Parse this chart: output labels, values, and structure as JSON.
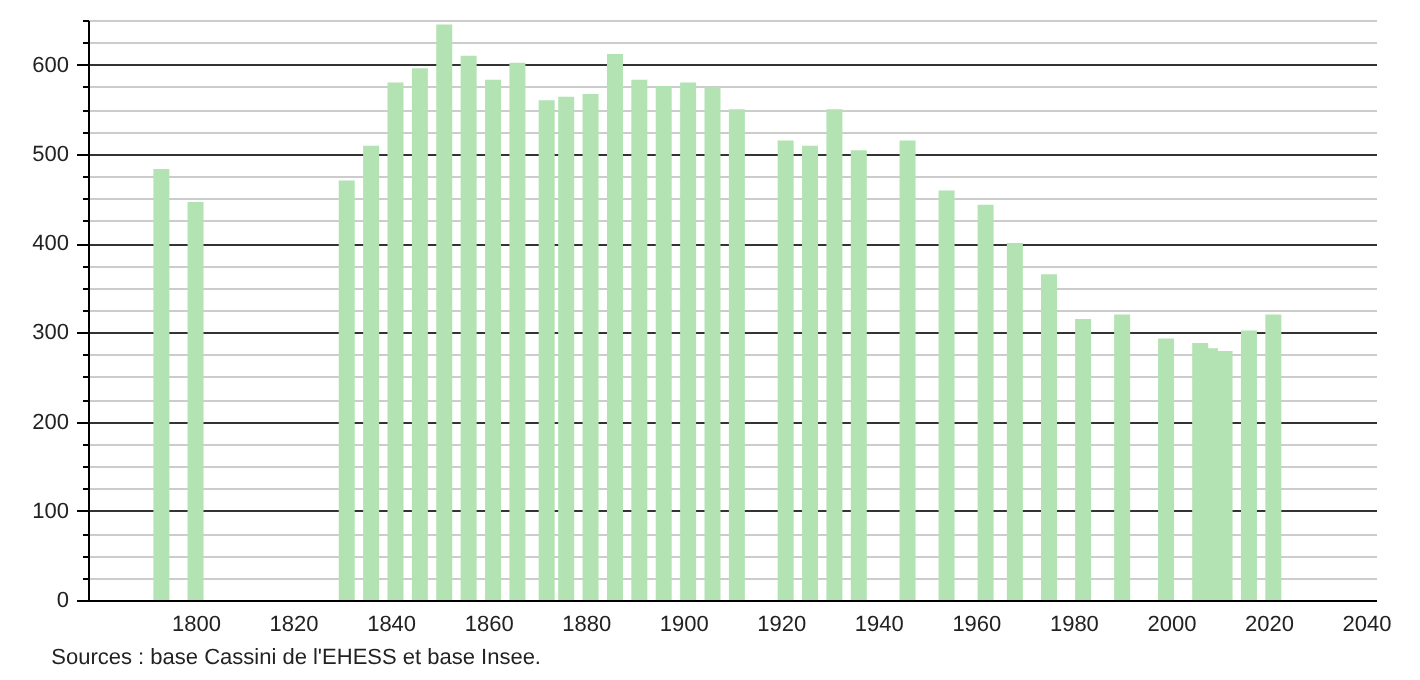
{
  "chart_data": {
    "type": "bar",
    "x": [
      1793,
      1800,
      1831,
      1836,
      1841,
      1846,
      1851,
      1856,
      1861,
      1866,
      1872,
      1876,
      1881,
      1886,
      1891,
      1896,
      1901,
      1906,
      1911,
      1921,
      1926,
      1931,
      1936,
      1946,
      1954,
      1962,
      1968,
      1975,
      1982,
      1990,
      1999,
      2006,
      2008,
      2011,
      2016,
      2021
    ],
    "values": [
      483,
      446,
      470,
      509,
      580,
      596,
      645,
      610,
      583,
      602,
      560,
      564,
      567,
      612,
      583,
      576,
      580,
      575,
      550,
      515,
      509,
      550,
      504,
      515,
      459,
      443,
      400,
      365,
      315,
      320,
      293,
      288,
      282,
      279,
      302,
      320
    ],
    "color": "#b3e3b3",
    "xlim": [
      1780,
      2040
    ],
    "xticks": [
      1800,
      1820,
      1840,
      1860,
      1880,
      1900,
      1920,
      1940,
      1960,
      1980,
      2000,
      2020,
      2040
    ],
    "ylim": [
      0,
      650
    ],
    "yticks": [
      0,
      {
        "value": 25,
        "label": null
      },
      {
        "value": 50,
        "label": null
      },
      {
        "value": 75,
        "label": null
      },
      100,
      {
        "value": 125,
        "label": null
      },
      {
        "value": 150,
        "label": null
      },
      {
        "value": 175,
        "label": null
      },
      200,
      {
        "value": 225,
        "label": null
      },
      {
        "value": 250,
        "label": null
      },
      {
        "value": 275,
        "label": null
      },
      300,
      {
        "value": 325,
        "label": null
      },
      {
        "value": 350,
        "label": null
      },
      {
        "value": 375,
        "label": null
      },
      400,
      {
        "value": 425,
        "label": null
      },
      {
        "value": 450,
        "label": null
      },
      {
        "value": 475,
        "label": null
      },
      500,
      {
        "value": 525,
        "label": null
      },
      {
        "value": 550,
        "label": null
      },
      {
        "value": 575,
        "label": null
      },
      600,
      {
        "value": 625,
        "label": null
      },
      {
        "value": 650,
        "label": null
      }
    ],
    "grid": "y",
    "annotations": [
      "Sources : base Cassini de l'EHESS et base Insee."
    ]
  }
}
